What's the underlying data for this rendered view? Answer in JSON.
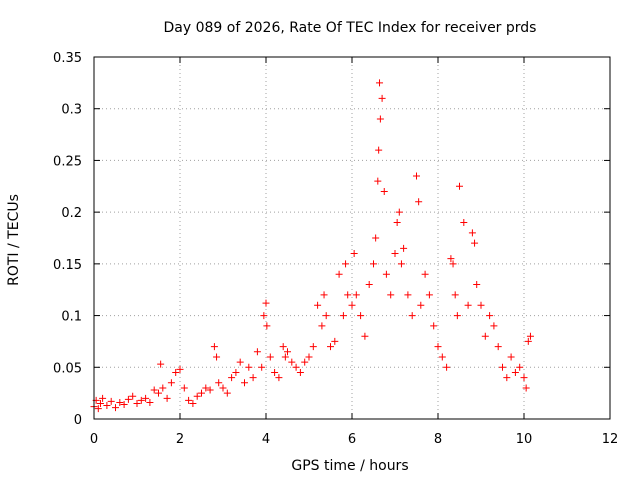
{
  "chart_data": {
    "type": "scatter",
    "title": "Day 089 of 2026, Rate Of TEC Index for receiver prds",
    "xlabel": "GPS time / hours",
    "ylabel": "ROTI / TECUs",
    "xlim": [
      0,
      12
    ],
    "ylim": [
      0,
      0.35
    ],
    "xticks": [
      "0",
      "2",
      "4",
      "6",
      "8",
      "10",
      "12"
    ],
    "yticks": [
      "0",
      "0.05",
      "0.1",
      "0.15",
      "0.2",
      "0.25",
      "0.3",
      "0.35"
    ],
    "grid": true,
    "marker": "+",
    "colors": {
      "points": "#ff0000",
      "grid": "#a0a0a0",
      "axis": "#000000"
    },
    "series": [
      {
        "x": [
          0.0,
          0.05,
          0.1,
          0.15,
          0.2,
          0.3,
          0.4,
          0.5,
          0.6,
          0.7,
          0.8,
          0.9,
          1.0,
          1.1,
          1.2,
          1.3,
          1.4,
          1.5,
          1.55,
          1.6,
          1.7,
          1.8,
          1.9,
          2.0,
          2.1,
          2.2,
          2.3,
          2.4,
          2.5,
          2.6,
          2.7,
          2.8,
          2.85,
          2.9,
          3.0,
          3.1,
          3.2,
          3.3,
          3.4,
          3.5,
          3.6,
          3.7,
          3.8,
          3.9,
          3.95,
          4.0,
          4.02,
          4.1,
          4.2,
          4.3,
          4.4,
          4.45,
          4.5,
          4.6,
          4.7,
          4.8,
          4.9,
          5.0,
          5.1,
          5.2,
          5.3,
          5.35,
          5.4,
          5.5,
          5.6,
          5.7,
          5.8,
          5.85,
          5.9,
          6.0,
          6.05,
          6.1,
          6.2,
          6.3,
          6.4,
          6.5,
          6.55,
          6.6,
          6.62,
          6.64,
          6.66,
          6.7,
          6.75,
          6.8,
          6.9,
          7.0,
          7.05,
          7.1,
          7.15,
          7.2,
          7.3,
          7.4,
          7.5,
          7.55,
          7.6,
          7.7,
          7.8,
          7.9,
          8.0,
          8.1,
          8.2,
          8.3,
          8.35,
          8.4,
          8.45,
          8.5,
          8.6,
          8.7,
          8.8,
          8.85,
          8.9,
          9.0,
          9.1,
          9.2,
          9.3,
          9.4,
          9.5,
          9.6,
          9.7,
          9.8,
          9.9,
          10.0,
          10.05,
          10.1,
          10.15
        ],
        "y": [
          0.012,
          0.018,
          0.01,
          0.015,
          0.02,
          0.013,
          0.017,
          0.011,
          0.016,
          0.014,
          0.019,
          0.022,
          0.015,
          0.018,
          0.02,
          0.016,
          0.028,
          0.025,
          0.053,
          0.03,
          0.02,
          0.035,
          0.045,
          0.048,
          0.03,
          0.018,
          0.015,
          0.022,
          0.025,
          0.03,
          0.028,
          0.07,
          0.06,
          0.035,
          0.03,
          0.025,
          0.04,
          0.045,
          0.055,
          0.035,
          0.05,
          0.04,
          0.065,
          0.05,
          0.1,
          0.112,
          0.09,
          0.06,
          0.045,
          0.04,
          0.07,
          0.06,
          0.065,
          0.055,
          0.05,
          0.045,
          0.055,
          0.06,
          0.07,
          0.11,
          0.09,
          0.12,
          0.1,
          0.07,
          0.075,
          0.14,
          0.1,
          0.15,
          0.12,
          0.11,
          0.16,
          0.12,
          0.1,
          0.08,
          0.13,
          0.15,
          0.175,
          0.23,
          0.26,
          0.325,
          0.29,
          0.31,
          0.22,
          0.14,
          0.12,
          0.16,
          0.19,
          0.2,
          0.15,
          0.165,
          0.12,
          0.1,
          0.235,
          0.21,
          0.11,
          0.14,
          0.12,
          0.09,
          0.07,
          0.06,
          0.05,
          0.155,
          0.15,
          0.12,
          0.1,
          0.225,
          0.19,
          0.11,
          0.18,
          0.17,
          0.13,
          0.11,
          0.08,
          0.1,
          0.09,
          0.07,
          0.05,
          0.04,
          0.06,
          0.045,
          0.05,
          0.04,
          0.03,
          0.075,
          0.08
        ]
      }
    ]
  }
}
